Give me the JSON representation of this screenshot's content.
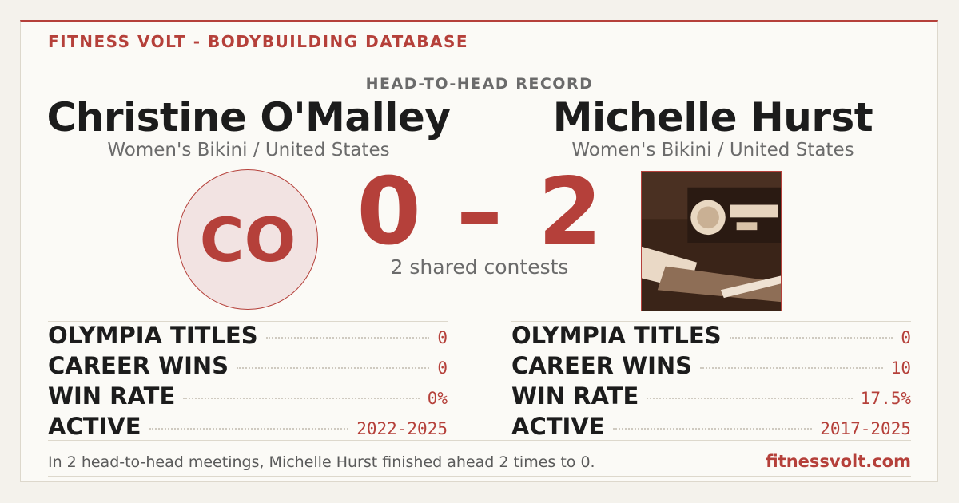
{
  "header": {
    "brand": "FITNESS VOLT - BODYBUILDING DATABASE",
    "title": "HEAD-TO-HEAD RECORD"
  },
  "competitors": [
    {
      "name": "Christine O'Malley",
      "division": "Women's Bikini / United States",
      "initials": "CO",
      "stats": [
        {
          "label": "OLYMPIA TITLES",
          "value": "0"
        },
        {
          "label": "CAREER WINS",
          "value": "0"
        },
        {
          "label": "WIN RATE",
          "value": "0%"
        },
        {
          "label": "ACTIVE",
          "value": "2022-2025"
        }
      ]
    },
    {
      "name": "Michelle Hurst",
      "division": "Women's Bikini / United States",
      "stats": [
        {
          "label": "OLYMPIA TITLES",
          "value": "0"
        },
        {
          "label": "CAREER WINS",
          "value": "10"
        },
        {
          "label": "WIN RATE",
          "value": "17.5%"
        },
        {
          "label": "ACTIVE",
          "value": "2017-2025"
        }
      ]
    }
  ],
  "score": {
    "left": "0",
    "separator": "–",
    "right": "2",
    "caption": "2 shared contests"
  },
  "footer": {
    "summary": "In 2 head-to-head meetings, Michelle Hurst finished ahead 2 times to 0.",
    "site": "fitnessvolt.com"
  }
}
